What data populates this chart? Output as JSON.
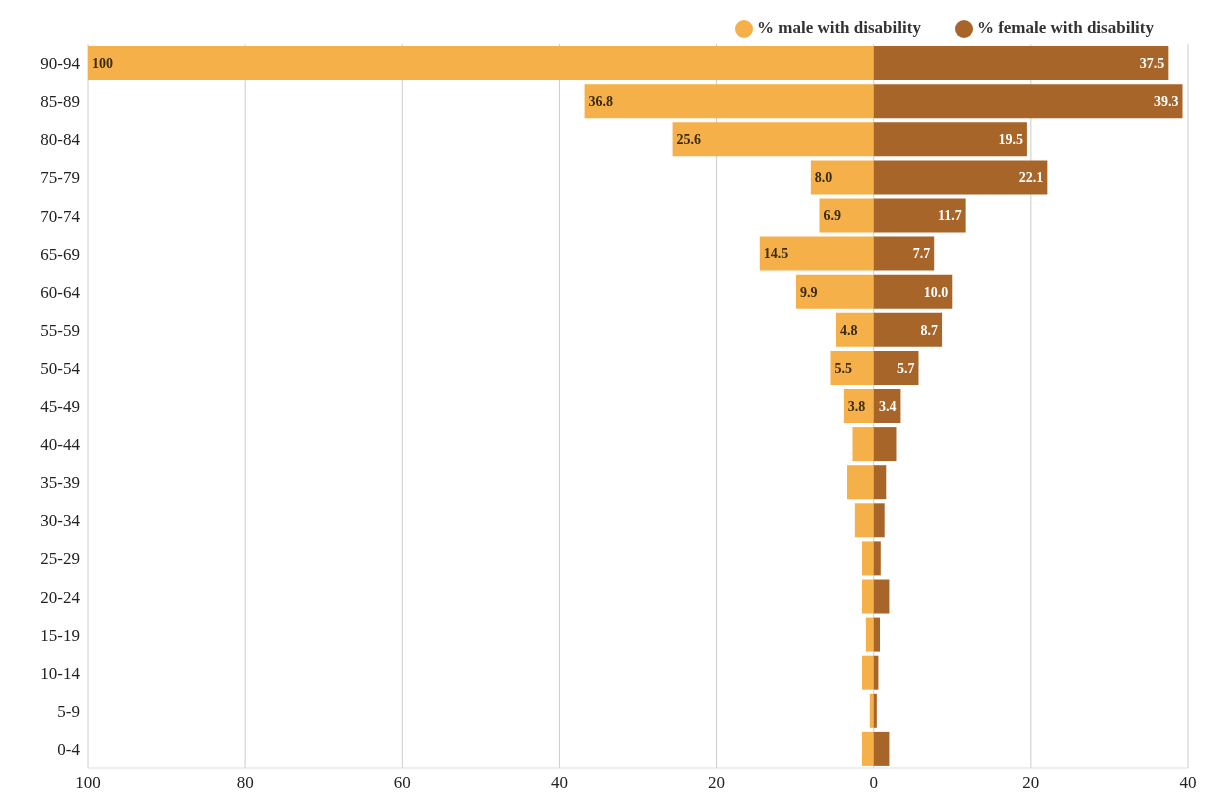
{
  "chart_data": {
    "type": "bar",
    "orientation": "horizontal",
    "categories": [
      "90-94",
      "85-89",
      "80-84",
      "75-79",
      "70-74",
      "65-69",
      "60-64",
      "55-59",
      "50-54",
      "45-49",
      "40-44",
      "35-39",
      "30-34",
      "25-29",
      "20-24",
      "15-19",
      "10-14",
      "5-9",
      "0-4"
    ],
    "series": [
      {
        "name": "% male with disability",
        "color": "#f5b04a",
        "base": [
          -100,
          -36.8,
          -25.6,
          -8.0,
          -6.9,
          -14.5,
          -9.9,
          -4.8,
          -5.5,
          -3.8,
          -2.7,
          -3.4,
          -2.4,
          -1.5,
          -1.5,
          -1.0,
          -1.5,
          -0.5,
          -1.5
        ],
        "values": [
          100,
          36.8,
          25.6,
          8.0,
          6.9,
          14.5,
          9.9,
          4.8,
          5.5,
          3.8,
          2.7,
          3.4,
          2.4,
          1.5,
          1.5,
          1.0,
          1.5,
          0.5,
          1.5
        ],
        "value_labels": [
          "100",
          "36.8",
          "25.6",
          "8.0",
          "6.9",
          "14.5",
          "9.9",
          "4.8",
          "5.5",
          "3.8",
          null,
          null,
          null,
          null,
          null,
          null,
          null,
          null,
          null
        ]
      },
      {
        "name": "% female with disability",
        "color": "#a8652a",
        "values": [
          37.5,
          39.3,
          19.5,
          22.1,
          11.7,
          7.7,
          10.0,
          8.7,
          5.7,
          3.4,
          2.9,
          1.6,
          1.4,
          0.9,
          2.0,
          0.8,
          0.6,
          0.4,
          2.0
        ],
        "value_labels": [
          "37.5",
          "39.3",
          "19.5",
          "22.1",
          "11.7",
          "7.7",
          "10.0",
          "8.7",
          "5.7",
          "3.4",
          null,
          null,
          null,
          null,
          null,
          null,
          null,
          null,
          null
        ]
      }
    ],
    "xlim": [
      -100,
      40
    ],
    "xticks": [
      {
        "value": -100,
        "label": "100"
      },
      {
        "value": -80,
        "label": "80"
      },
      {
        "value": -60,
        "label": "60"
      },
      {
        "value": -40,
        "label": "40"
      },
      {
        "value": -20,
        "label": "20"
      },
      0,
      20,
      40
    ],
    "grid": "x",
    "legend": "top right"
  }
}
